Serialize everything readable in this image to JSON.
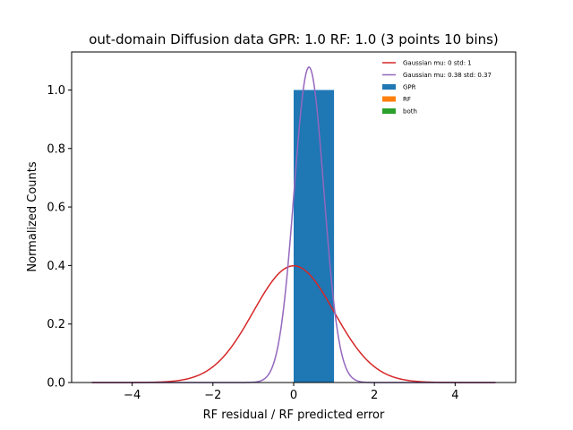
{
  "chart_data": {
    "type": "bar",
    "title": "out-domain Diffusion data GPR: 1.0 RF: 1.0 (3 points 10 bins)",
    "xlabel": "RF residual / RF predicted error",
    "ylabel": "Normalized Counts",
    "xlim": [
      -5.5,
      5.5
    ],
    "ylim": [
      0,
      1.13
    ],
    "xticks": [
      -4,
      -2,
      0,
      2,
      4
    ],
    "xtick_labels": [
      "−4",
      "−2",
      "0",
      "2",
      "4"
    ],
    "yticks": [
      0.0,
      0.2,
      0.4,
      0.6,
      0.8,
      1.0
    ],
    "ytick_labels": [
      "0.0",
      "0.2",
      "0.4",
      "0.6",
      "0.8",
      "1.0"
    ],
    "grid": false,
    "legend_position": "top-right",
    "series": [
      {
        "name": "Gaussian mu: 0 std: 1",
        "kind": "line",
        "mu": 0,
        "std": 1,
        "x_range": [
          -5,
          5
        ],
        "color": "#d62728"
      },
      {
        "name": "Gaussian mu: 0.38 std: 0.37",
        "kind": "line",
        "mu": 0.38,
        "std": 0.37,
        "x_range": [
          -5,
          5
        ],
        "color": "#9467bd"
      },
      {
        "name": "GPR",
        "kind": "bar",
        "color": "#1f77b4",
        "bars": [
          {
            "x0": 0,
            "x1": 1,
            "value": 1.0
          }
        ]
      },
      {
        "name": "RF",
        "kind": "bar",
        "color": "#ff7f0e",
        "bars": []
      },
      {
        "name": "both",
        "kind": "bar",
        "color": "#2ca02c",
        "bars": []
      }
    ]
  }
}
